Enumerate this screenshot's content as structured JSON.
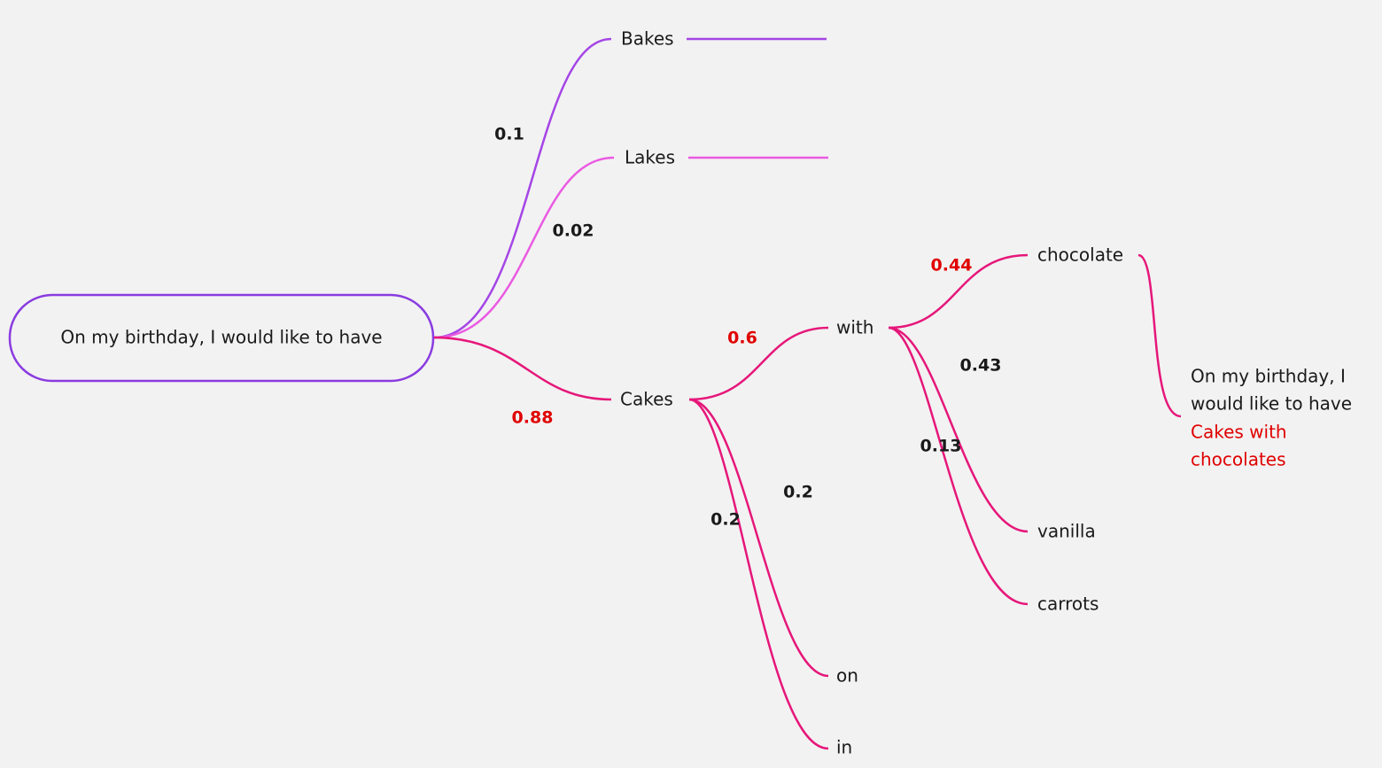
{
  "root": {
    "label": "On my birthday, I would like to have"
  },
  "nodes": [
    {
      "label": "Bakes",
      "probability": "0.1"
    },
    {
      "label": "Lakes",
      "probability": "0.02"
    },
    {
      "label": "Cakes",
      "probability": "0.88"
    },
    {
      "label": "with",
      "probability": "0.6"
    },
    {
      "label": "on",
      "probability": "0.2"
    },
    {
      "label": "in",
      "probability": "0.2"
    },
    {
      "label": "chocolate",
      "probability": "0.44"
    },
    {
      "label": "vanilla",
      "probability": "0.43"
    },
    {
      "label": "carrots",
      "probability": "0.13"
    }
  ],
  "result": {
    "lines": [
      "On my birthday, I",
      "would like to have"
    ],
    "highlight": [
      "Cakes with",
      "chocolates"
    ]
  }
}
